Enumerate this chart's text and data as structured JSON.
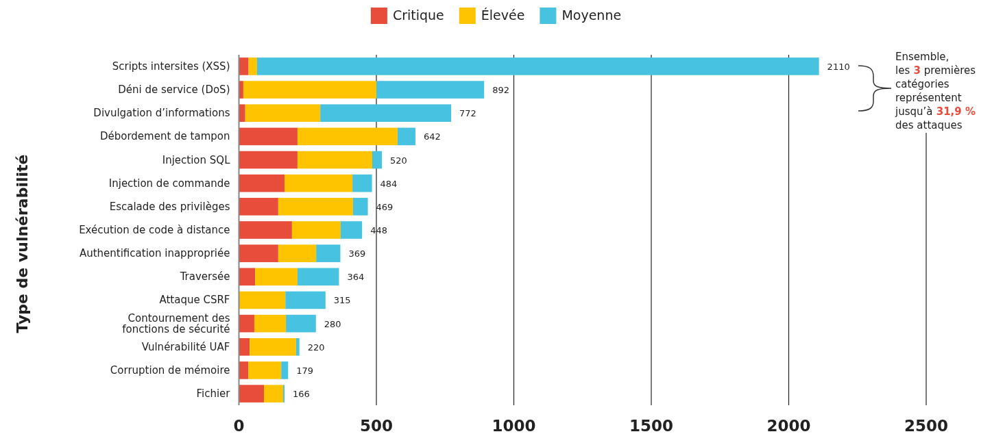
{
  "chart_data": {
    "type": "bar",
    "orientation": "horizontal",
    "stacked": true,
    "ylabel": "Type de vulnérabilité",
    "categories": [
      "Scripts intersites (XSS)",
      "Déni de service (DoS)",
      "Divulgation d’informations",
      "Débordement de tampon",
      "Injection SQL",
      "Injection de commande",
      "Escalade des privilèges",
      "Exécution de code à distance",
      "Authentification inappropriée",
      "Traversée",
      "Attaque CSRF",
      "Contournement des fonctions de sécurité",
      "Vulnérabilité UAF",
      "Corruption de mémoire",
      "Fichier"
    ],
    "series": [
      {
        "name": "Critique",
        "color": "#e84c3a",
        "values": [
          35,
          16,
          23,
          213,
          213,
          166,
          143,
          193,
          143,
          59,
          0,
          56,
          39,
          34,
          91
        ]
      },
      {
        "name": "Élevée",
        "color": "#ffc400",
        "values": [
          31,
          484,
          273,
          364,
          272,
          247,
          272,
          177,
          138,
          154,
          169,
          115,
          169,
          120,
          70
        ]
      },
      {
        "name": "Moyenne",
        "color": "#48c2e1",
        "values": [
          2044,
          392,
          476,
          65,
          35,
          71,
          54,
          78,
          88,
          151,
          146,
          109,
          12,
          25,
          5
        ]
      }
    ],
    "totals": [
      "2110",
      "892",
      "772",
      "642",
      "520",
      "484",
      "469",
      "448",
      "369",
      "364",
      "315",
      "280",
      "220",
      "179",
      "166"
    ],
    "xlim": [
      0,
      2500
    ],
    "xticks": [
      0,
      500,
      1000,
      1500,
      2000,
      2500
    ],
    "grid": "x",
    "legend": "top",
    "annotations": [
      "Ensemble, les 3 premières catégories représentent jusqu’à 31,9 % des attaques"
    ]
  }
}
